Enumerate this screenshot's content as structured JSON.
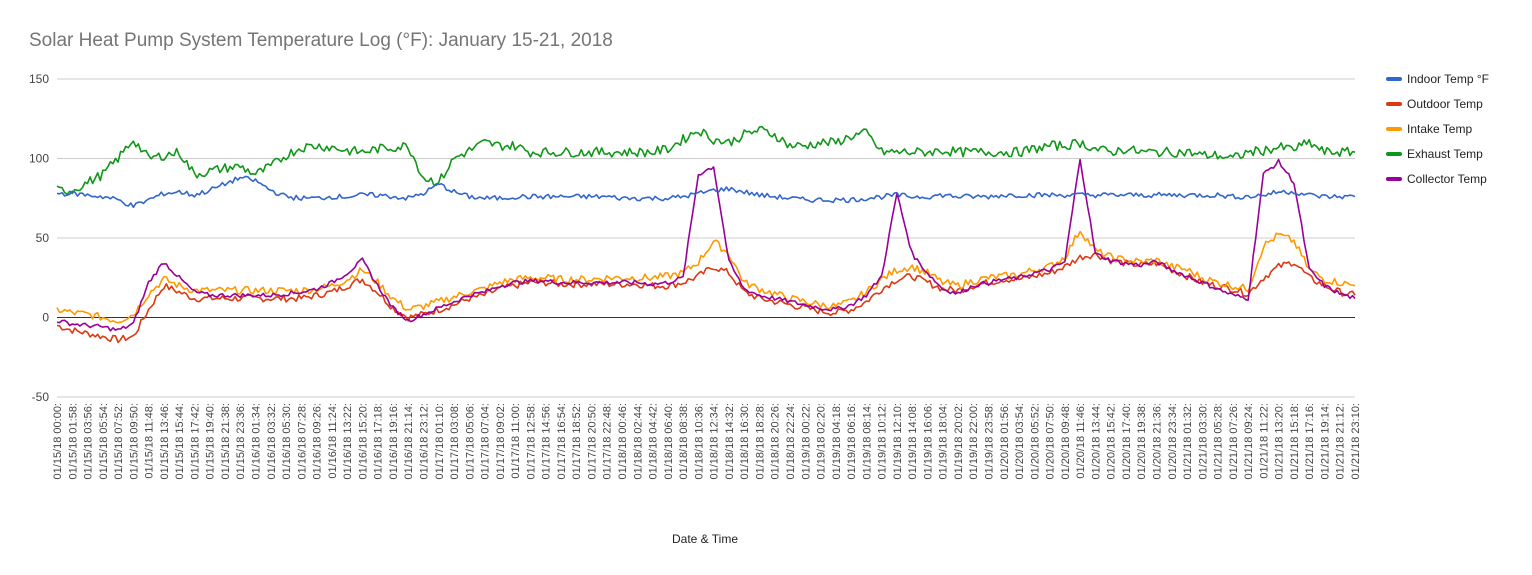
{
  "chart_data": {
    "type": "line",
    "title": "Solar Heat Pump System Temperature Log (°F): January 15-21, 2018",
    "xlabel": "Date & Time",
    "ylabel": "",
    "ylim": [
      -50,
      150
    ],
    "yticks": [
      "150",
      "100",
      "50",
      "0",
      "-50"
    ],
    "y_tick_values": [
      150,
      100,
      50,
      0,
      -50
    ],
    "grid": true,
    "legend_position": "right",
    "categories": [
      "01/15/18 00:00:",
      "01/15/18 01:58:",
      "01/15/18 03:56:",
      "01/15/18 05:54:",
      "01/15/18 07:52:",
      "01/15/18 09:50:",
      "01/15/18 11:48:",
      "01/15/18 13:46:",
      "01/15/18 15:44:",
      "01/15/18 17:42:",
      "01/15/18 19:40:",
      "01/15/18 21:38:",
      "01/15/18 23:36:",
      "01/16/18 01:34:",
      "01/16/18 03:32:",
      "01/16/18 05:30:",
      "01/16/18 07:28:",
      "01/16/18 09:26:",
      "01/16/18 11:24:",
      "01/16/18 13:22:",
      "01/16/18 15:20:",
      "01/16/18 17:18:",
      "01/16/18 19:16:",
      "01/16/18 21:14:",
      "01/16/18 23:12:",
      "01/17/18 01:10:",
      "01/17/18 03:08:",
      "01/17/18 05:06:",
      "01/17/18 07:04:",
      "01/17/18 09:02:",
      "01/17/18 11:00:",
      "01/17/18 12:58:",
      "01/17/18 14:56:",
      "01/17/18 16:54:",
      "01/17/18 18:52:",
      "01/17/18 20:50:",
      "01/17/18 22:48:",
      "01/18/18 00:46:",
      "01/18/18 02:44:",
      "01/18/18 04:42:",
      "01/18/18 06:40:",
      "01/18/18 08:38:",
      "01/18/18 10:36:",
      "01/18/18 12:34:",
      "01/18/18 14:32:",
      "01/18/18 16:30:",
      "01/18/18 18:28:",
      "01/18/18 20:26:",
      "01/18/18 22:24:",
      "01/19/18 00:22:",
      "01/19/18 02:20:",
      "01/19/18 04:18:",
      "01/19/18 06:16:",
      "01/19/18 08:14:",
      "01/19/18 10:12:",
      "01/19/18 12:10:",
      "01/19/18 14:08:",
      "01/19/18 16:06:",
      "01/19/18 18:04:",
      "01/19/18 20:02:",
      "01/19/18 22:00:",
      "01/19/18 23:58:",
      "01/20/18 01:56:",
      "01/20/18 03:54:",
      "01/20/18 05:52:",
      "01/20/18 07:50:",
      "01/20/18 09:48:",
      "01/20/18 11:46:",
      "01/20/18 13:44:",
      "01/20/18 15:42:",
      "01/20/18 17:40:",
      "01/20/18 19:38:",
      "01/20/18 21:36:",
      "01/20/18 23:34:",
      "01/21/18 01:32:",
      "01/21/18 03:30:",
      "01/21/18 05:28:",
      "01/21/18 07:26:",
      "01/21/18 09:24:",
      "01/21/18 11:22:",
      "01/21/18 13:20:",
      "01/21/18 15:18:",
      "01/21/18 17:16:",
      "01/21/18 19:14:",
      "01/21/18 21:12:",
      "01/21/18 23:10:"
    ],
    "series": [
      {
        "name": "Indoor Temp °F",
        "color": "#3366cc",
        "values": [
          78,
          78,
          77,
          76,
          74,
          70,
          74,
          78,
          79,
          77,
          80,
          84,
          88,
          86,
          80,
          76,
          75,
          75,
          76,
          76,
          77,
          77,
          76,
          75,
          78,
          84,
          79,
          76,
          75,
          75,
          76,
          76,
          76,
          76,
          76,
          76,
          76,
          75,
          75,
          75,
          75,
          76,
          78,
          80,
          81,
          79,
          77,
          76,
          75,
          74,
          74,
          74,
          74,
          75,
          76,
          77,
          76,
          76,
          77,
          76,
          76,
          76,
          77,
          77,
          77,
          77,
          77,
          77,
          77,
          77,
          77,
          77,
          77,
          77,
          77,
          77,
          77,
          76,
          76,
          77,
          79,
          79,
          77,
          76,
          76,
          76
        ]
      },
      {
        "name": "Outdoor Temp",
        "color": "#dc3912",
        "values": [
          -5,
          -8,
          -10,
          -12,
          -14,
          -12,
          5,
          20,
          16,
          12,
          12,
          12,
          12,
          12,
          12,
          12,
          12,
          14,
          16,
          20,
          24,
          16,
          6,
          0,
          2,
          5,
          8,
          12,
          14,
          18,
          20,
          22,
          22,
          21,
          21,
          21,
          21,
          21,
          21,
          20,
          20,
          22,
          26,
          32,
          28,
          16,
          12,
          10,
          8,
          6,
          4,
          3,
          5,
          10,
          18,
          24,
          26,
          22,
          18,
          17,
          20,
          22,
          24,
          24,
          26,
          28,
          32,
          38,
          40,
          36,
          34,
          33,
          34,
          30,
          26,
          22,
          20,
          18,
          15,
          25,
          32,
          35,
          25,
          20,
          16,
          14
        ]
      },
      {
        "name": "Intake Temp",
        "color": "#ff9900",
        "values": [
          5,
          3,
          2,
          0,
          -2,
          2,
          15,
          24,
          20,
          17,
          17,
          17,
          17,
          17,
          17,
          17,
          17,
          18,
          20,
          24,
          30,
          22,
          12,
          5,
          7,
          10,
          13,
          16,
          18,
          22,
          24,
          25,
          25,
          24,
          24,
          24,
          25,
          25,
          25,
          25,
          26,
          28,
          35,
          48,
          40,
          22,
          18,
          15,
          12,
          10,
          8,
          7,
          10,
          16,
          24,
          30,
          32,
          28,
          22,
          20,
          23,
          25,
          26,
          27,
          30,
          32,
          38,
          55,
          42,
          38,
          36,
          35,
          36,
          32,
          30,
          25,
          22,
          20,
          18,
          45,
          52,
          48,
          30,
          24,
          22,
          20
        ]
      },
      {
        "name": "Exhaust Temp",
        "color": "#109618",
        "values": [
          80,
          80,
          85,
          90,
          100,
          112,
          100,
          102,
          104,
          90,
          92,
          94,
          95,
          90,
          95,
          102,
          107,
          108,
          107,
          105,
          104,
          106,
          107,
          108,
          88,
          85,
          100,
          105,
          110,
          108,
          108,
          104,
          104,
          104,
          104,
          104,
          104,
          104,
          104,
          104,
          106,
          112,
          118,
          112,
          110,
          115,
          118,
          115,
          108,
          108,
          110,
          110,
          114,
          116,
          104,
          104,
          104,
          104,
          105,
          104,
          104,
          104,
          104,
          104,
          106,
          108,
          108,
          110,
          106,
          104,
          106,
          104,
          104,
          104,
          104,
          102,
          102,
          100,
          104,
          105,
          107,
          106,
          110,
          104,
          104,
          104
        ]
      },
      {
        "name": "Collector Temp",
        "color": "#990099",
        "values": [
          -2,
          -4,
          -5,
          -6,
          -8,
          -4,
          22,
          35,
          25,
          16,
          14,
          14,
          14,
          14,
          14,
          15,
          16,
          18,
          22,
          28,
          36,
          20,
          6,
          -2,
          2,
          6,
          10,
          14,
          16,
          20,
          22,
          23,
          23,
          22,
          22,
          22,
          22,
          22,
          22,
          21,
          22,
          25,
          90,
          95,
          35,
          18,
          14,
          12,
          10,
          8,
          6,
          5,
          8,
          14,
          26,
          78,
          40,
          28,
          18,
          15,
          20,
          22,
          24,
          25,
          28,
          30,
          35,
          100,
          40,
          36,
          34,
          33,
          35,
          30,
          26,
          22,
          18,
          14,
          12,
          90,
          98,
          85,
          30,
          20,
          15,
          12
        ]
      }
    ]
  }
}
